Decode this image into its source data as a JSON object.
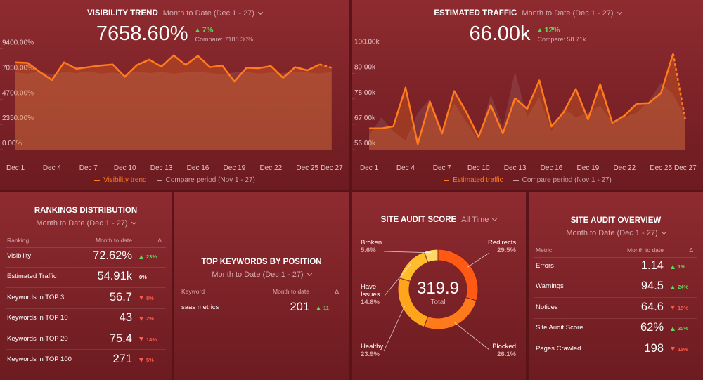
{
  "visibility_trend": {
    "title": "VISIBILITY TREND",
    "period": "Month to Date (Dec 1 - 27)",
    "value": "7658.60%",
    "change": "7%",
    "direction": "up",
    "compare": "Compare: 7188.30%",
    "chart": {
      "type": "area",
      "categories": [
        "Dec 1",
        null,
        null,
        "Dec 4",
        null,
        null,
        "Dec 7",
        null,
        null,
        "Dec 10",
        null,
        null,
        "Dec 13",
        null,
        null,
        "Dec 16",
        null,
        null,
        "Dec 19",
        null,
        null,
        "Dec 22",
        null,
        null,
        "Dec 25",
        null,
        "Dec 27"
      ],
      "series": [
        {
          "name": "Visibility trend",
          "color": "#ff7b1c",
          "values": [
            8150,
            8100,
            7250,
            6500,
            8150,
            7550,
            7700,
            7850,
            7950,
            6800,
            7900,
            8400,
            7750,
            8800,
            7900,
            8750,
            7700,
            7850,
            6350,
            7650,
            7600,
            7800,
            6700,
            7700,
            7400,
            7950,
            7650
          ]
        },
        {
          "name": "Compare period (Nov 1 - 27)",
          "color": "#c9a2a4",
          "values": [
            7200,
            7100,
            7300,
            7000,
            7250,
            7150,
            7300,
            7100,
            7200,
            7050,
            7300,
            7150,
            7250,
            7100,
            7200,
            7300,
            7150,
            7050,
            7200,
            7250,
            7100,
            7200,
            7150,
            7300,
            7200,
            7100,
            7250
          ]
        }
      ],
      "ylim": [
        0,
        9900
      ],
      "yticks": [
        {
          "value": 0,
          "label": "0.00%"
        },
        {
          "value": 2350,
          "label": "2350.00%"
        },
        {
          "value": 4700,
          "label": "4700.00%"
        },
        {
          "value": 7050,
          "label": "7050.00%"
        },
        {
          "value": 9400,
          "label": "9400.00%"
        }
      ],
      "dashed_last_segment": true
    }
  },
  "estimated_traffic": {
    "title": "ESTIMATED TRAFFIC",
    "period": "Month to Date (Dec 1 - 27)",
    "value": "66.00k",
    "change": "12%",
    "direction": "up",
    "compare": "Compare: 58.71k",
    "chart": {
      "type": "area",
      "categories": [
        "Dec 1",
        null,
        null,
        "Dec 4",
        null,
        null,
        "Dec 7",
        null,
        null,
        "Dec 10",
        null,
        null,
        "Dec 13",
        null,
        null,
        "Dec 16",
        null,
        null,
        "Dec 19",
        null,
        null,
        "Dec 22",
        null,
        null,
        "Dec 25",
        null,
        "Dec 27"
      ],
      "series": [
        {
          "name": "Estimated traffic",
          "color": "#ff7b1c",
          "values": [
            65200,
            65200,
            66100,
            82900,
            58400,
            76800,
            63000,
            81400,
            72200,
            61500,
            75300,
            63000,
            78300,
            73700,
            86000,
            66000,
            72200,
            82300,
            69100,
            84400,
            67600,
            70700,
            75900,
            76200,
            80500,
            97600,
            69100
          ]
        },
        {
          "name": "Compare period (Nov 1 - 27)",
          "color": "#c9a2a4",
          "values": [
            62000,
            70000,
            64000,
            60000,
            72000,
            78000,
            65000,
            76000,
            68000,
            60000,
            80000,
            66000,
            90000,
            70000,
            79000,
            64000,
            74000,
            70000,
            72000,
            75000,
            68000,
            70000,
            72000,
            77000,
            85000,
            80000,
            70000
          ]
        }
      ],
      "ylim": [
        56000,
        102000
      ],
      "yticks": [
        {
          "value": 56000,
          "label": "56.00k"
        },
        {
          "value": 67000,
          "label": "67.00k"
        },
        {
          "value": 78000,
          "label": "78.00k"
        },
        {
          "value": 89000,
          "label": "89.00k"
        },
        {
          "value": 100000,
          "label": "100.00k"
        }
      ],
      "dashed_last_segment": true
    }
  },
  "rankings_distribution": {
    "title": "RANKINGS DISTRIBUTION",
    "period": "Month to Date (Dec 1 - 27)",
    "columns": [
      "Ranking",
      "Month to date",
      "Δ"
    ],
    "rows": [
      {
        "label": "Visibility",
        "value": "72.62%",
        "change": "23%",
        "direction": "up"
      },
      {
        "label": "Estimated Traffic",
        "value": "54.91k",
        "change": "0%",
        "direction": "flat"
      },
      {
        "label": "Keywords in TOP 3",
        "value": "56.7",
        "change": "8%",
        "direction": "down"
      },
      {
        "label": "Keywords in TOP 10",
        "value": "43",
        "change": "2%",
        "direction": "down"
      },
      {
        "label": "Keywords in TOP 20",
        "value": "75.4",
        "change": "14%",
        "direction": "down"
      },
      {
        "label": "Keywords in TOP 100",
        "value": "271",
        "change": "5%",
        "direction": "down"
      }
    ]
  },
  "top_keywords": {
    "title": "TOP KEYWORDS BY POSITION",
    "period": "Month to Date (Dec 1 - 27)",
    "columns": [
      "Keyword",
      "Month to date",
      "Δ"
    ],
    "rows": [
      {
        "label": "saas metrics",
        "value": "201",
        "change": "11",
        "direction": "up"
      }
    ]
  },
  "site_audit_score": {
    "title": "SITE AUDIT SCORE",
    "period": "All Time",
    "total": "319.9",
    "total_label": "Total",
    "chart": {
      "type": "donut",
      "categories": [
        "Redirects",
        "Blocked",
        "Healthy",
        "Have Issues",
        "Broken"
      ],
      "values": [
        29.5,
        26.1,
        23.9,
        14.8,
        5.6
      ],
      "value_labels": [
        "29.5%",
        "26.1%",
        "23.9%",
        "14.8%",
        "5.6%"
      ],
      "colors": [
        "#ff5a14",
        "#ff7a1a",
        "#ffa51c",
        "#ffbd2c",
        "#ffd766"
      ]
    }
  },
  "site_audit_overview": {
    "title": "SITE AUDIT OVERVIEW",
    "period": "Month to Date (Dec 1 - 27)",
    "columns": [
      "Metric",
      "Month to date",
      "Δ"
    ],
    "rows": [
      {
        "label": "Errors",
        "value": "1.14",
        "change": "1%",
        "direction": "up"
      },
      {
        "label": "Warnings",
        "value": "94.5",
        "change": "24%",
        "direction": "up"
      },
      {
        "label": "Notices",
        "value": "64.6",
        "change": "15%",
        "direction": "down"
      },
      {
        "label": "Site Audit Score",
        "value": "62%",
        "change": "20%",
        "direction": "up"
      },
      {
        "label": "Pages Crawled",
        "value": "198",
        "change": "11%",
        "direction": "down"
      }
    ]
  }
}
